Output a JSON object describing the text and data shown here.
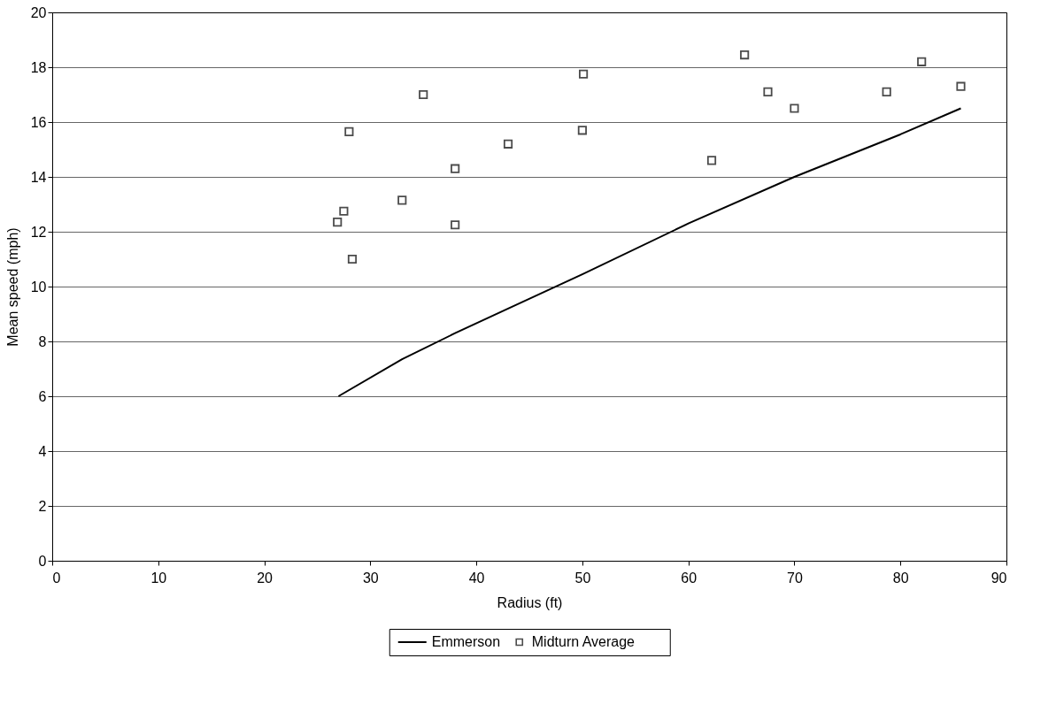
{
  "chart_data": {
    "type": "scatter",
    "xlabel": "Radius (ft)",
    "ylabel": "Mean speed (mph)",
    "xlim": [
      0,
      90
    ],
    "xticks": [
      0,
      10,
      20,
      30,
      40,
      50,
      60,
      70,
      80,
      90
    ],
    "ylim": [
      0,
      20
    ],
    "yticks": [
      0,
      2,
      4,
      6,
      8,
      10,
      12,
      14,
      16,
      18,
      20
    ],
    "grid": "y",
    "legend": "bottom",
    "series": [
      {
        "name": "Emmerson",
        "type": "line",
        "color": "#000000",
        "marker": "none",
        "line_style": "solid",
        "x": [
          27,
          33,
          38,
          43,
          50,
          60,
          70,
          80,
          85.7
        ],
        "values": [
          6.0,
          7.35,
          8.3,
          9.2,
          10.45,
          12.3,
          14.0,
          15.55,
          16.5
        ]
      },
      {
        "name": "Midturn Average",
        "type": "scatter",
        "color": "#000000",
        "marker": "square",
        "x": [
          26.9,
          27.5,
          28.0,
          28.3,
          33.0,
          35.0,
          38.0,
          38.0,
          43.0,
          50.0,
          50.1,
          62.2,
          65.3,
          67.5,
          70.0,
          78.7,
          82.0,
          85.7
        ],
        "values": [
          12.35,
          12.75,
          15.65,
          11.0,
          13.15,
          17.0,
          14.3,
          12.25,
          15.2,
          15.7,
          17.75,
          14.6,
          18.45,
          17.1,
          16.5,
          17.1,
          18.2,
          17.3
        ]
      }
    ]
  }
}
